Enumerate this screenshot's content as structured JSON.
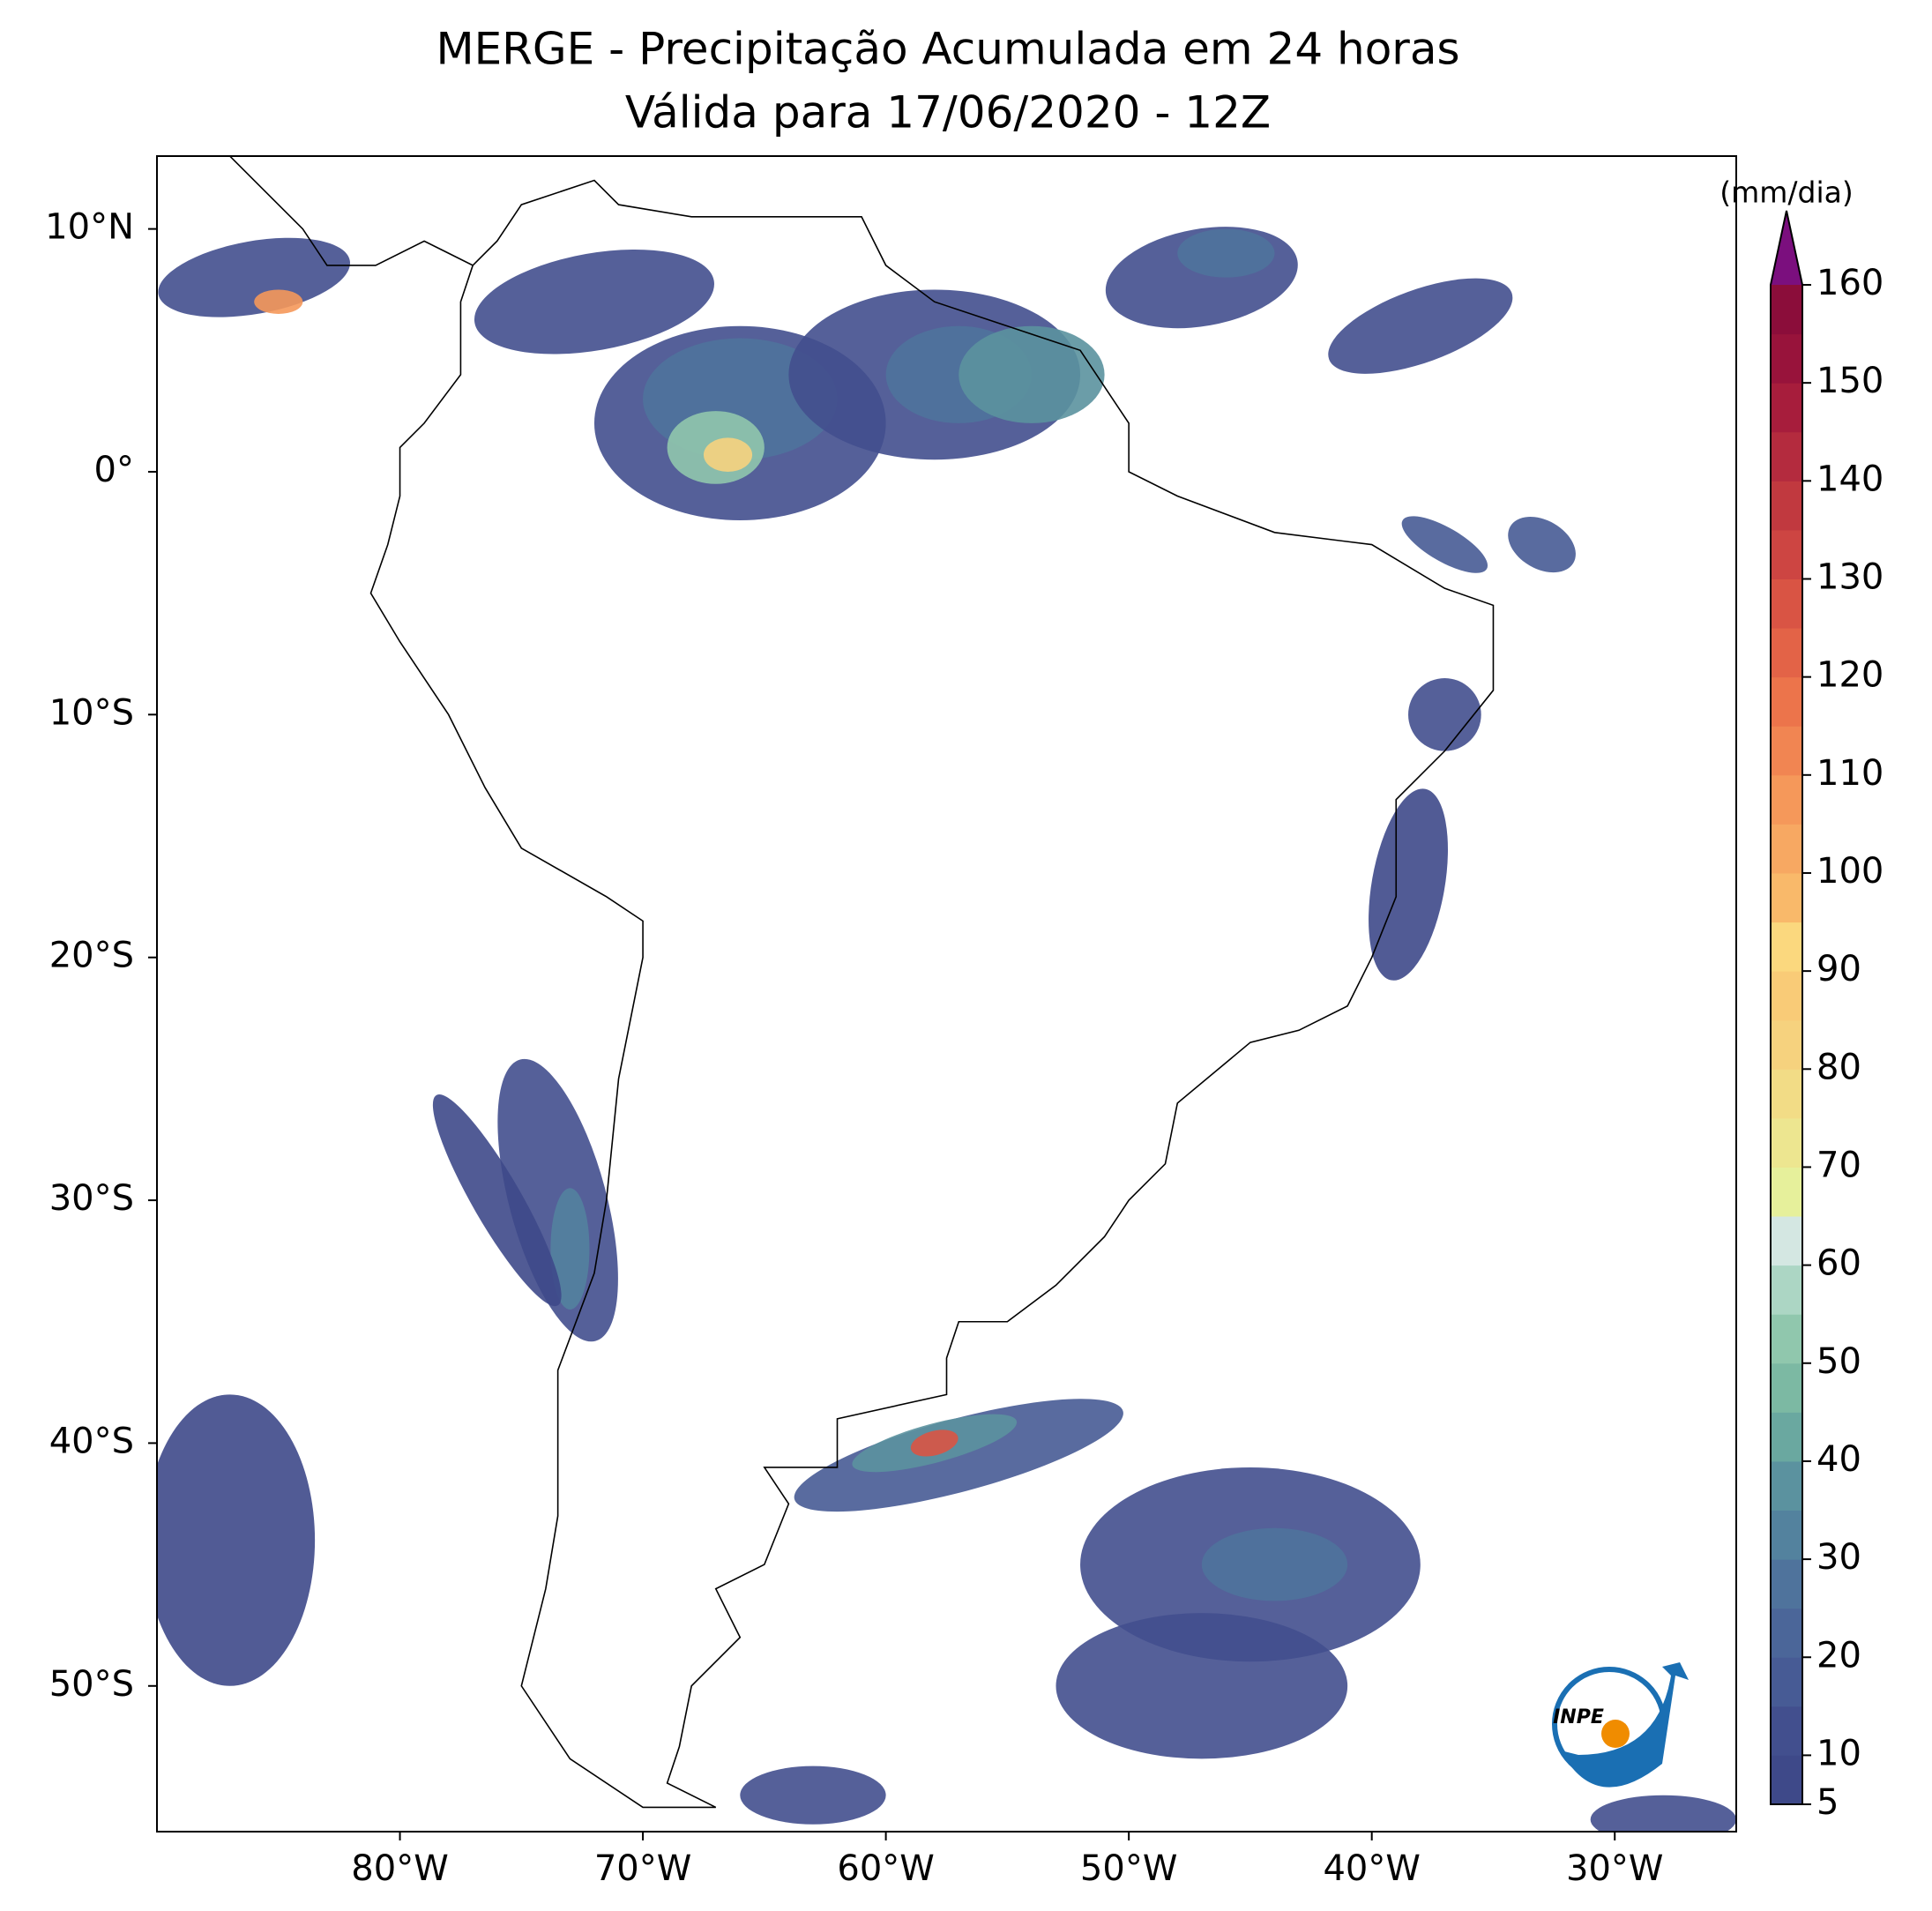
{
  "title": "MERGE - Precipitação Acumulada em 24 horas",
  "subtitle": "Válida para 17/06/2020 - 12Z",
  "map": {
    "xlim": [
      -90,
      -25
    ],
    "ylim": [
      -56,
      13
    ],
    "xticks": [
      {
        "value": -80,
        "label": "80°W"
      },
      {
        "value": -70,
        "label": "70°W"
      },
      {
        "value": -60,
        "label": "60°W"
      },
      {
        "value": -50,
        "label": "50°W"
      },
      {
        "value": -40,
        "label": "40°W"
      },
      {
        "value": -30,
        "label": "30°W"
      }
    ],
    "yticks": [
      {
        "value": 10,
        "label": "10°N"
      },
      {
        "value": 0,
        "label": "0°"
      },
      {
        "value": -10,
        "label": "10°S"
      },
      {
        "value": -20,
        "label": "20°S"
      },
      {
        "value": -30,
        "label": "30°S"
      },
      {
        "value": -40,
        "label": "40°S"
      },
      {
        "value": -50,
        "label": "50°S"
      }
    ]
  },
  "colorbar": {
    "label": "(mm/dia)",
    "lim": [
      5,
      160
    ],
    "ticks": [
      5,
      10,
      20,
      30,
      40,
      50,
      60,
      70,
      80,
      90,
      100,
      110,
      120,
      130,
      140,
      150,
      160
    ],
    "colors": [
      "#3e4989",
      "#424f8e",
      "#475b95",
      "#4b6699",
      "#4f739c",
      "#53829e",
      "#5b929f",
      "#6aa8a0",
      "#7cb9a3",
      "#90c7ad",
      "#acd6c4",
      "#d4e7e2",
      "#e6f09b",
      "#ede690",
      "#f2dc86",
      "#f6d27e",
      "#f9cb77",
      "#fbd87e",
      "#f9b96a",
      "#f7a862",
      "#f5985a",
      "#f18552",
      "#ec744b",
      "#e36347",
      "#d95444",
      "#cd4542",
      "#c1393f",
      "#b42b3e",
      "#a71d3c",
      "#98133b",
      "#8b0d3a"
    ],
    "extend_color": "#7b0f7e"
  },
  "logo": {
    "text": "INPE"
  }
}
